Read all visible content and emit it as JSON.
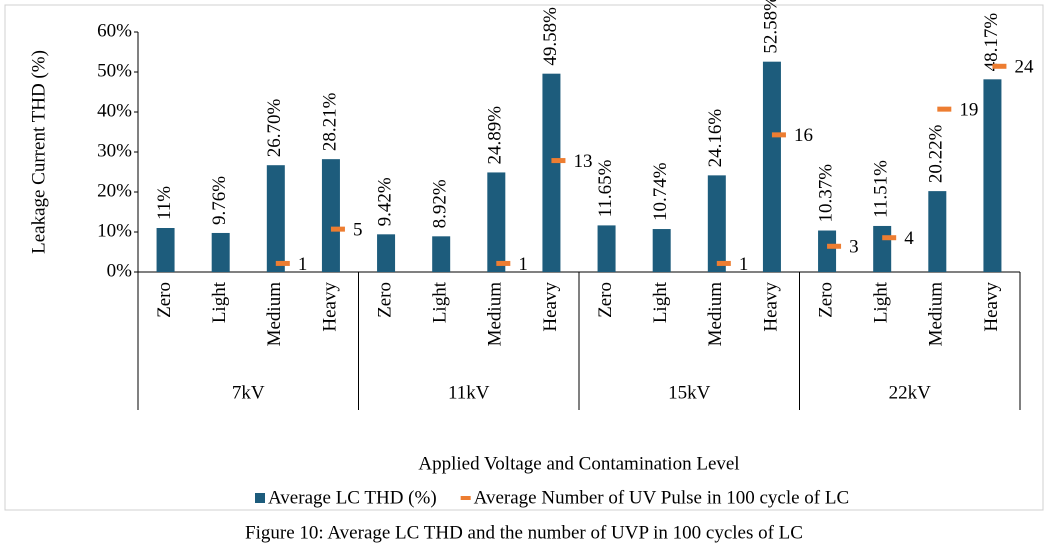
{
  "chart_data": {
    "type": "bar",
    "caption": "Figure 10: Average LC THD and the number of UVP in 100 cycles of LC",
    "x_label": "Applied Voltage and Contamination Level",
    "y_label": "Leakage Current THD (%)",
    "categories": [
      "Zero",
      "Light",
      "Medium",
      "Heavy",
      "Zero",
      "Light",
      "Medium",
      "Heavy",
      "Zero",
      "Light",
      "Medium",
      "Heavy",
      "Zero",
      "Light",
      "Medium",
      "Heavy"
    ],
    "groups": [
      "7kV",
      "11kV",
      "15kV",
      "22kV"
    ],
    "series": [
      {
        "name": "Average LC THD (%)",
        "color": "#1d5c7c",
        "values": [
          11,
          9.76,
          26.7,
          28.21,
          9.42,
          8.92,
          24.89,
          49.58,
          11.65,
          10.74,
          24.16,
          52.58,
          10.37,
          11.51,
          20.22,
          48.17
        ],
        "value_labels": [
          "11%",
          "9.76%",
          "26.70%",
          "28.21%",
          "9.42%",
          "8.92%",
          "24.89%",
          "49.58%",
          "11.65%",
          "10.74%",
          "24.16%",
          "52.58%",
          "10.37%",
          "11.51%",
          "20.22%",
          "48.17%"
        ]
      },
      {
        "name": "Average Number of UV Pulse in 100 cycle of LC",
        "color": "#ed7d31",
        "axis": "y2",
        "values": [
          null,
          null,
          1,
          5,
          null,
          null,
          1,
          13,
          null,
          null,
          1,
          16,
          3,
          4,
          19,
          24
        ]
      }
    ],
    "ylim": [
      0,
      60
    ],
    "yticks": [
      {
        "value": 0,
        "label": "0%"
      },
      {
        "value": 10,
        "label": "10%"
      },
      {
        "value": 20,
        "label": "20%"
      },
      {
        "value": 30,
        "label": "30%"
      },
      {
        "value": 40,
        "label": "40%"
      },
      {
        "value": 50,
        "label": "50%"
      },
      {
        "value": 60,
        "label": "60%"
      }
    ],
    "y2lim": [
      0,
      28
    ],
    "legend": "bottom"
  }
}
